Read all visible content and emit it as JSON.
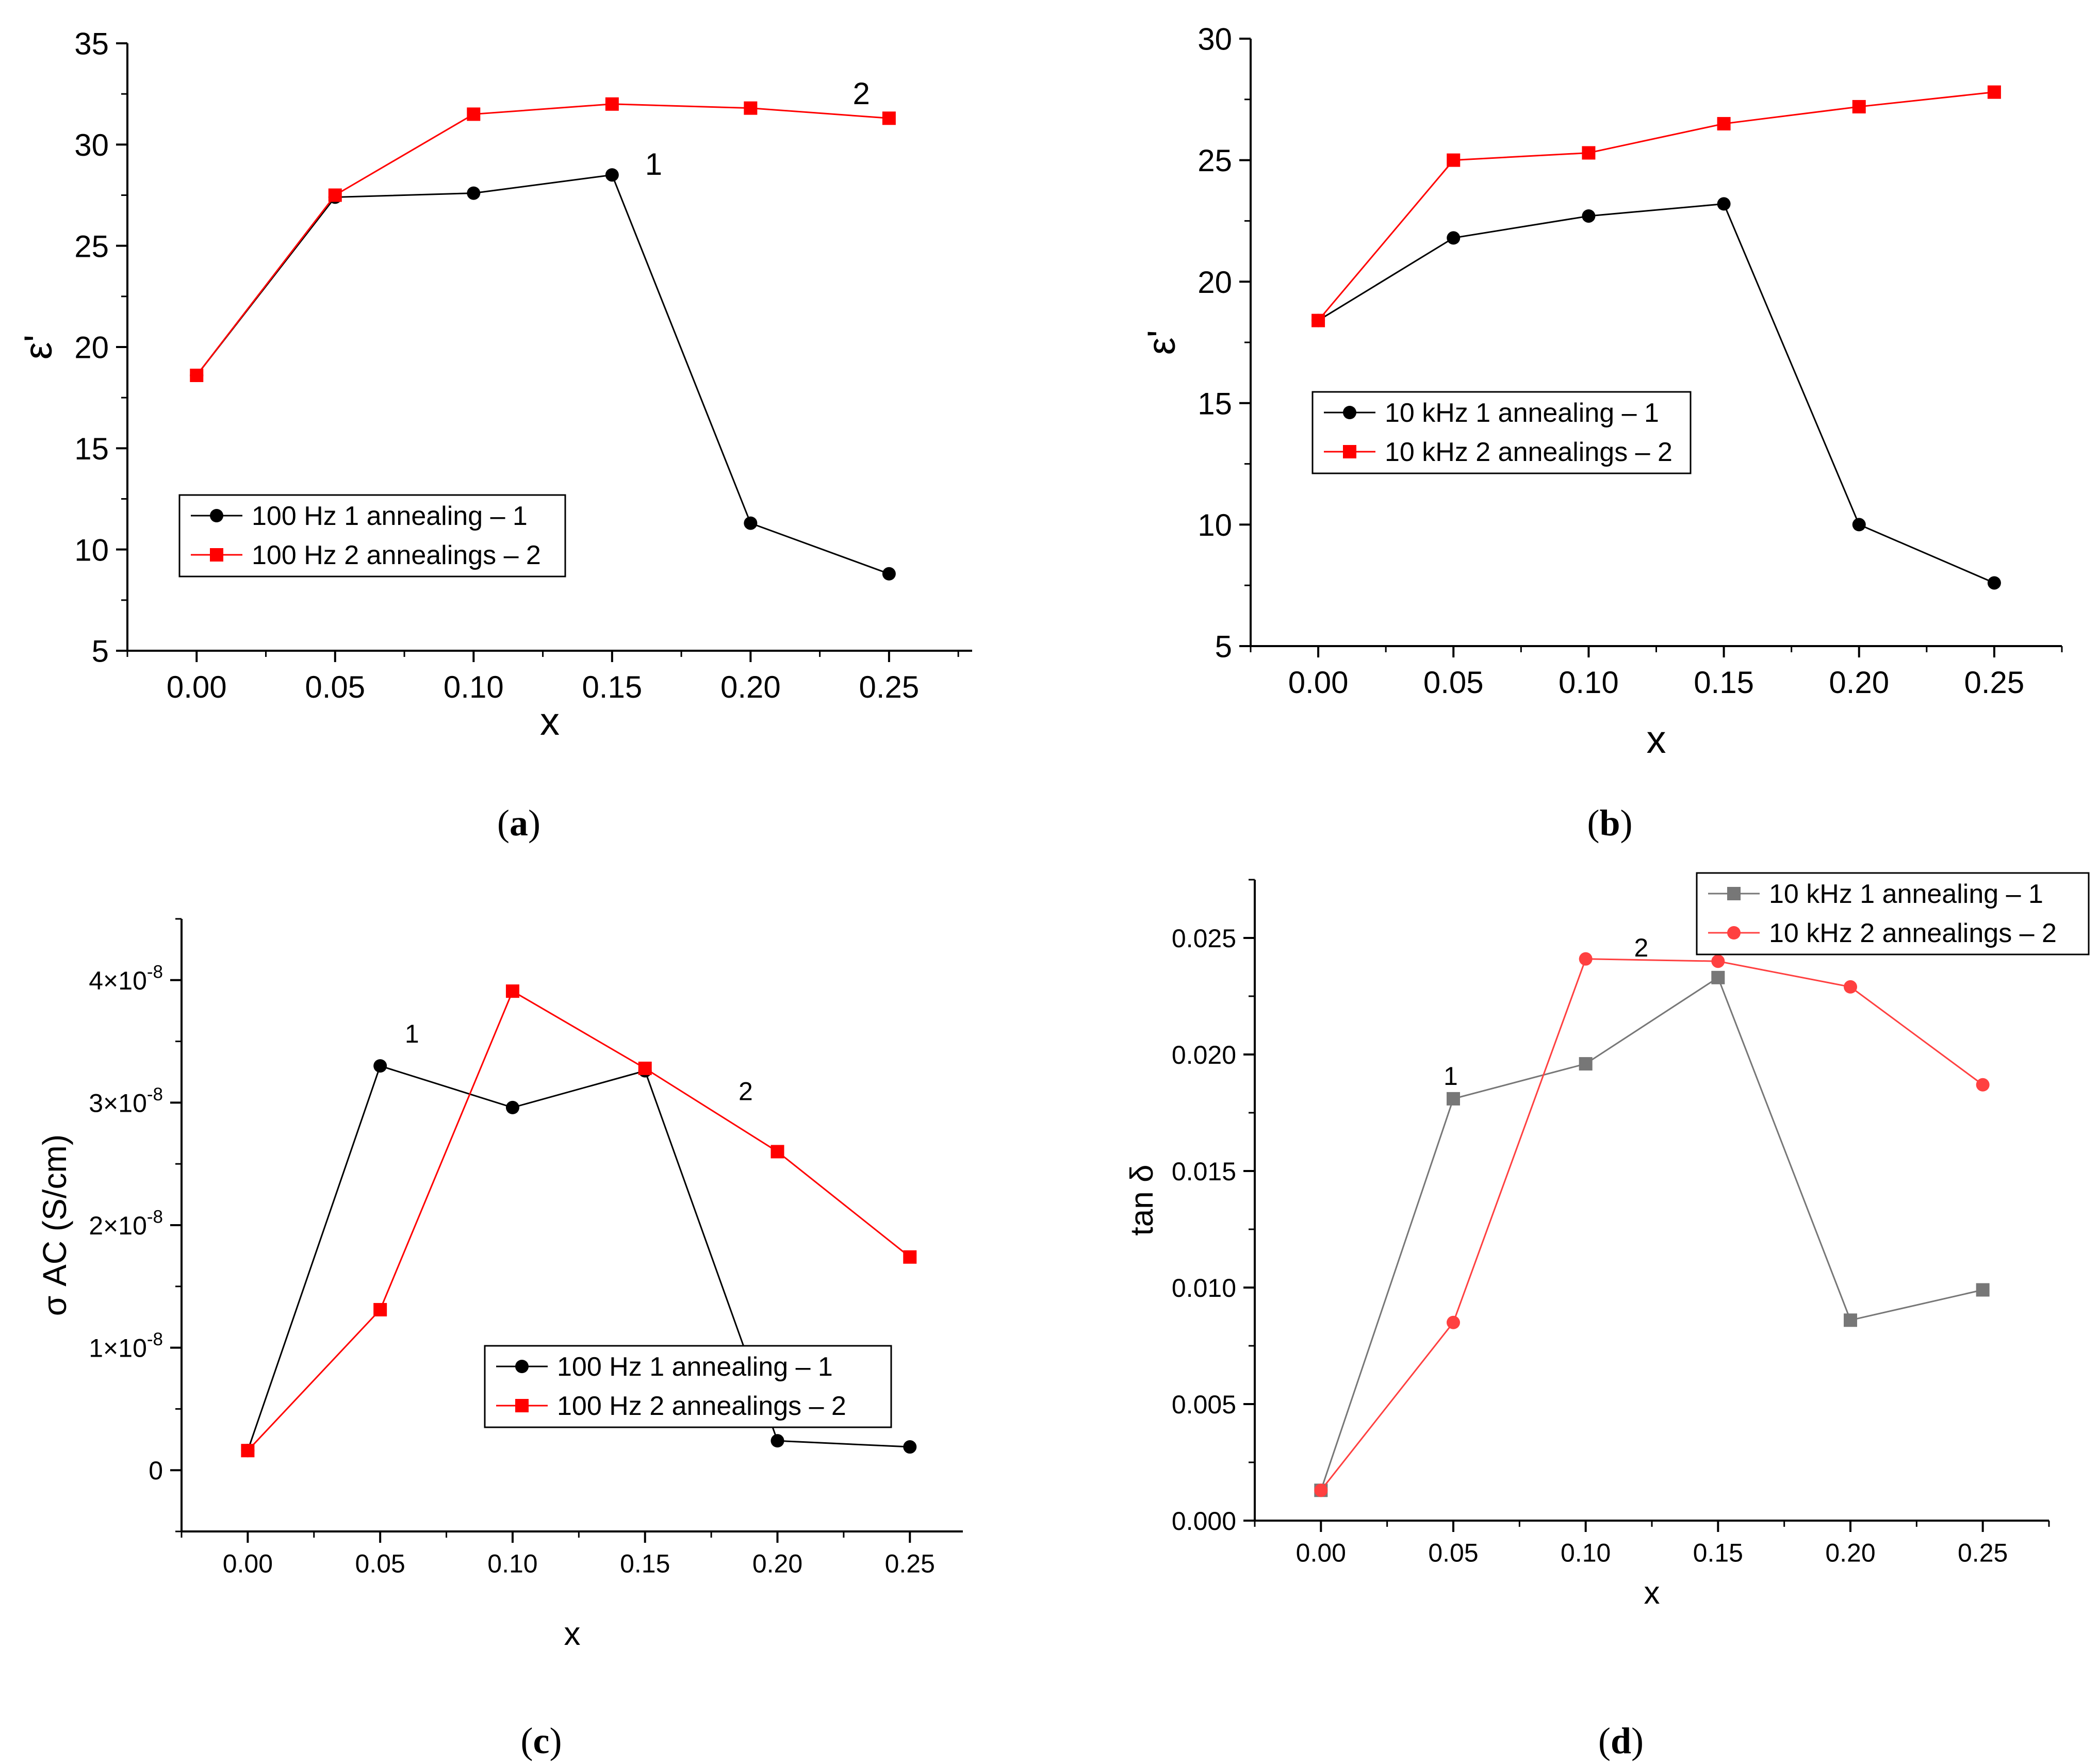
{
  "chart_data": [
    {
      "id": "a",
      "type": "line",
      "panel_label": "a",
      "xlabel": "x",
      "ylabel": "ε'",
      "xlim": [
        -0.025,
        0.28
      ],
      "ylim": [
        5,
        35
      ],
      "xticks": [
        0.0,
        0.05,
        0.1,
        0.15,
        0.2,
        0.25
      ],
      "xtick_labels": [
        "0.00",
        "0.05",
        "0.10",
        "0.15",
        "0.20",
        "0.25"
      ],
      "yticks": [
        5,
        10,
        15,
        20,
        25,
        30,
        35
      ],
      "ytick_labels": [
        "5",
        "10",
        "15",
        "20",
        "25",
        "30",
        "35"
      ],
      "legend_position": "lower-left",
      "series": [
        {
          "name": "100 Hz 1 annealing – 1",
          "color": "#000000",
          "marker": "circle",
          "x": [
            0.0,
            0.05,
            0.1,
            0.15,
            0.2,
            0.25
          ],
          "values": [
            18.6,
            27.4,
            27.6,
            28.5,
            11.3,
            8.8
          ]
        },
        {
          "name": "100 Hz 2 annealings – 2",
          "color": "#ff0000",
          "marker": "square",
          "x": [
            0.0,
            0.05,
            0.1,
            0.15,
            0.2,
            0.25
          ],
          "values": [
            18.6,
            27.5,
            31.5,
            32.0,
            31.8,
            31.3
          ]
        }
      ],
      "annotations": [
        {
          "text": "1",
          "x": 0.165,
          "y": 28.5
        },
        {
          "text": "2",
          "x": 0.24,
          "y": 32.0
        }
      ]
    },
    {
      "id": "b",
      "type": "line",
      "panel_label": "b",
      "xlabel": "x",
      "ylabel": "ε'",
      "xlim": [
        -0.025,
        0.275
      ],
      "ylim": [
        5,
        30
      ],
      "xticks": [
        0.0,
        0.05,
        0.1,
        0.15,
        0.2,
        0.25
      ],
      "xtick_labels": [
        "0.00",
        "0.05",
        "0.10",
        "0.15",
        "0.20",
        "0.25"
      ],
      "yticks": [
        5,
        10,
        15,
        20,
        25,
        30
      ],
      "ytick_labels": [
        "5",
        "10",
        "15",
        "20",
        "25",
        "30"
      ],
      "legend_position": "center-left",
      "series": [
        {
          "name": "10 kHz 1 annealing – 1",
          "color": "#000000",
          "marker": "circle",
          "x": [
            0.0,
            0.05,
            0.1,
            0.15,
            0.2,
            0.25
          ],
          "values": [
            18.4,
            21.8,
            22.7,
            23.2,
            10.0,
            7.6
          ]
        },
        {
          "name": "10 kHz 2 annealings – 2",
          "color": "#ff0000",
          "marker": "square",
          "x": [
            0.0,
            0.05,
            0.1,
            0.15,
            0.2,
            0.25
          ],
          "values": [
            18.4,
            25.0,
            25.3,
            26.5,
            27.2,
            27.8
          ]
        }
      ],
      "annotations": []
    },
    {
      "id": "c",
      "type": "line",
      "panel_label": "c",
      "xlabel": "x",
      "ylabel": "σ AC (S/cm)",
      "xlim": [
        -0.025,
        0.27
      ],
      "ylim": [
        -0.5,
        4.5
      ],
      "y_scale_note": "values in units of 10^-8 S/cm",
      "xticks": [
        0.0,
        0.05,
        0.1,
        0.15,
        0.2,
        0.25
      ],
      "xtick_labels": [
        "0.00",
        "0.05",
        "0.10",
        "0.15",
        "0.20",
        "0.25"
      ],
      "yticks": [
        0,
        1,
        2,
        3,
        4
      ],
      "ytick_labels": [
        {
          "base": "0",
          "exp": ""
        },
        {
          "base": "1×10",
          "exp": "-8"
        },
        {
          "base": "2×10",
          "exp": "-8"
        },
        {
          "base": "3×10",
          "exp": "-8"
        },
        {
          "base": "4×10",
          "exp": "-8"
        }
      ],
      "legend_position": "lower-right",
      "series": [
        {
          "name": "100 Hz 1 annealing – 1",
          "color": "#000000",
          "marker": "circle",
          "x": [
            0.0,
            0.05,
            0.1,
            0.15,
            0.2,
            0.25
          ],
          "values": [
            0.16,
            3.3,
            2.96,
            3.26,
            0.24,
            0.19
          ]
        },
        {
          "name": "100 Hz 2 annealings – 2",
          "color": "#ff0000",
          "marker": "square",
          "x": [
            0.0,
            0.05,
            0.1,
            0.15,
            0.2,
            0.25
          ],
          "values": [
            0.16,
            1.31,
            3.91,
            3.28,
            2.6,
            1.74
          ]
        }
      ],
      "annotations": [
        {
          "text": "1",
          "x": 0.062,
          "y": 3.49
        },
        {
          "text": "2",
          "x": 0.188,
          "y": 3.02
        }
      ]
    },
    {
      "id": "d",
      "type": "line",
      "panel_label": "d",
      "xlabel": "x",
      "ylabel": "tan δ",
      "xlim": [
        -0.025,
        0.275
      ],
      "ylim": [
        0.0,
        0.0275
      ],
      "xticks": [
        0.0,
        0.05,
        0.1,
        0.15,
        0.2,
        0.25
      ],
      "xtick_labels": [
        "0.00",
        "0.05",
        "0.10",
        "0.15",
        "0.20",
        "0.25"
      ],
      "yticks": [
        0.0,
        0.005,
        0.01,
        0.015,
        0.02,
        0.025
      ],
      "ytick_labels": [
        "0.000",
        "0.005",
        "0.010",
        "0.015",
        "0.020",
        "0.025"
      ],
      "legend_position": "top-right",
      "series": [
        {
          "name": "10 kHz 1 annealing – 1",
          "color": "#777777",
          "marker": "square",
          "x": [
            0.0,
            0.05,
            0.1,
            0.15,
            0.2,
            0.25
          ],
          "values": [
            0.0013,
            0.0181,
            0.0196,
            0.0233,
            0.0086,
            0.0099
          ]
        },
        {
          "name": "10 kHz 2 annealings – 2",
          "color": "#ff4040",
          "marker": "circle",
          "x": [
            0.0,
            0.05,
            0.1,
            0.15,
            0.2,
            0.25
          ],
          "values": [
            0.0013,
            0.0085,
            0.0241,
            0.024,
            0.0229,
            0.0187
          ]
        }
      ],
      "annotations": [
        {
          "text": "1",
          "x": 0.049,
          "y": 0.0187
        },
        {
          "text": "2",
          "x": 0.121,
          "y": 0.0242
        }
      ]
    }
  ]
}
